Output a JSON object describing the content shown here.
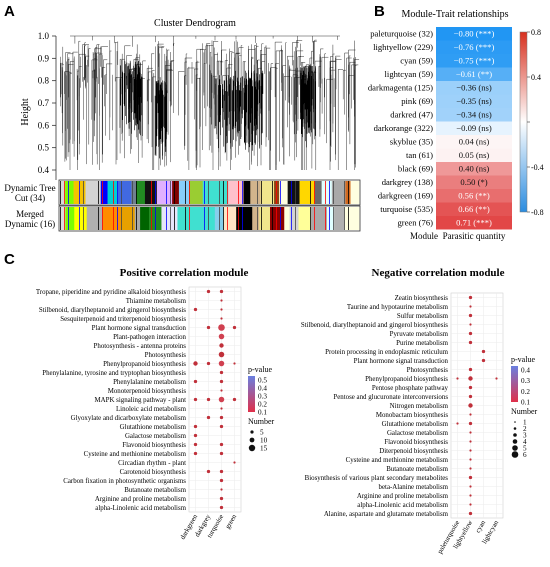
{
  "panel_a": {
    "letter": "A",
    "title": "Cluster Dendrogram",
    "ylabel": "Height",
    "yticks": [
      "1.0",
      "0.9",
      "0.8",
      "0.7",
      "0.6",
      "0.5",
      "0.4"
    ],
    "yvalues": [
      1.0,
      0.9,
      0.8,
      0.7,
      0.6,
      0.5,
      0.4
    ],
    "row1_label_a": "Dynamic Tree",
    "row1_label_b": "Cut (34)",
    "row2_label_a": "Merged",
    "row2_label_b": "Dynamic (16)",
    "row1_colors": [
      "#d8d8d8",
      "#7cfc00",
      "#f4c300",
      "#d3d3d3",
      "#0000ff",
      "#00ced1",
      "#4169e1",
      "#708090",
      "#228b22",
      "#111111",
      "#e0b0ff",
      "#800000",
      "#87cefa",
      "#9acd32",
      "#40e0d0",
      "#40e0d0",
      "#40e0d0",
      "#ffc0cb",
      "#000000",
      "#d2b48c",
      "#f0e68c",
      "#8b4513",
      "#ffffe0",
      "#111111",
      "#ffd700",
      "#696969",
      "#e0ffff",
      "#a9a9a9",
      "#d2691e",
      "#ffffe0"
    ],
    "row2_colors": [
      "#dddddd",
      "#7cfc00",
      "#ffff00",
      "#b0b0b0",
      "#ff8c00",
      "#ff8c00",
      "#e8a000",
      "#a9a9a9",
      "#006400",
      "#228b22",
      "#e6e6fa",
      "#40e0d0",
      "#40e0d0",
      "#40e0d0",
      "#40e0d0",
      "#87ceeb",
      "#ffe4c4",
      "#000000",
      "#d2b48c",
      "#f0e68c",
      "#8b0000",
      "#ffffe0",
      "#d3d3d3",
      "#ffff99",
      "#a9a9a9",
      "#e0ffff",
      "#b0b0b0",
      "#ffffe0"
    ]
  },
  "panel_b": {
    "letter": "B",
    "title": "Module-Trait relationships",
    "xlabel_left": "Module",
    "xlabel_right": "Parasitic quantity",
    "colorbar_ticks": [
      "0.8",
      "0.4",
      "0",
      "-0.4",
      "-0.8"
    ],
    "colorbar_values": [
      0.8,
      0.4,
      0,
      -0.4,
      -0.8
    ],
    "rows": [
      {
        "module": "paleturquoise (32)",
        "value": -0.8,
        "label": "−0.80 (***)"
      },
      {
        "module": "lightyellow (229)",
        "value": -0.76,
        "label": "−0.76 (***)"
      },
      {
        "module": "cyan (59)",
        "value": -0.75,
        "label": "−0.75 (***)"
      },
      {
        "module": "lightcyan (59)",
        "value": -0.61,
        "label": "−0.61 (**)"
      },
      {
        "module": "darkmagenta (125)",
        "value": -0.36,
        "label": "−0.36 (ns)"
      },
      {
        "module": "pink (69)",
        "value": -0.35,
        "label": "−0.35 (ns)"
      },
      {
        "module": "darkred (47)",
        "value": -0.34,
        "label": "−0.34 (ns)"
      },
      {
        "module": "darkorange (322)",
        "value": -0.09,
        "label": "−0.09 (ns)"
      },
      {
        "module": "skyblue (35)",
        "value": 0.04,
        "label": "0.04 (ns)"
      },
      {
        "module": "tan (61)",
        "value": 0.05,
        "label": "0.05 (ns)"
      },
      {
        "module": "black (69)",
        "value": 0.4,
        "label": "0.40 (ns)"
      },
      {
        "module": "darkgrey (138)",
        "value": 0.5,
        "label": "0.50 (*)"
      },
      {
        "module": "darkgreen (169)",
        "value": 0.56,
        "label": "0.56 (**)"
      },
      {
        "module": "turquoise (535)",
        "value": 0.66,
        "label": "0.66 (**)"
      },
      {
        "module": "green (76)",
        "value": 0.71,
        "label": "0.71 (***)"
      }
    ]
  },
  "panel_c": {
    "letter": "C",
    "left": {
      "title": "Positive correlation module",
      "columns": [
        "darkgreen",
        "darkgrey",
        "turquoise",
        "green"
      ],
      "legend_pvalue_title": "p-value",
      "legend_pvalue_ticks": [
        "0.5",
        "0.4",
        "0.3",
        "0.2",
        "0.1"
      ],
      "legend_number_title": "Number",
      "legend_number_items": [
        "5",
        "10",
        "15"
      ],
      "rows": [
        {
          "term": "Tropane, piperidine and pyridine alkaloid biosynthesis",
          "dots": [
            [
              1,
              3,
              "#c0303a"
            ],
            [
              2,
              3,
              "#c0303a"
            ]
          ]
        },
        {
          "term": "Thiamine metabolism",
          "dots": [
            [
              2,
              2,
              "#c0303a"
            ]
          ]
        },
        {
          "term": "Stilbenoid, diarylheptanoid and gingerol biosynthesis",
          "dots": [
            [
              0,
              3,
              "#c0303a"
            ],
            [
              2,
              2,
              "#c0303a"
            ]
          ]
        },
        {
          "term": "Sesquiterpenoid and triterpenoid biosynthesis",
          "dots": [
            [
              2,
              2,
              "#c0303a"
            ]
          ]
        },
        {
          "term": "Plant hormone signal transduction",
          "dots": [
            [
              1,
              3,
              "#c0303a"
            ],
            [
              2,
              6,
              "#d04050"
            ],
            [
              3,
              3,
              "#c0303a"
            ]
          ]
        },
        {
          "term": "Plant-pathogen interaction",
          "dots": [
            [
              2,
              5,
              "#d04050"
            ]
          ]
        },
        {
          "term": "Photosynthesis - antenna proteins",
          "dots": [
            [
              2,
              4,
              "#c0303a"
            ]
          ]
        },
        {
          "term": "Photosynthesis",
          "dots": [
            [
              2,
              5,
              "#c0303a"
            ]
          ]
        },
        {
          "term": "Phenylpropanoid biosynthesis",
          "dots": [
            [
              0,
              4,
              "#c0303a"
            ],
            [
              1,
              3,
              "#c0303a"
            ],
            [
              2,
              5,
              "#d04050"
            ],
            [
              3,
              2,
              "#c0303a"
            ]
          ]
        },
        {
          "term": "Phenylalanine, tyrosine and tryptophan biosynthesis",
          "dots": [
            [
              2,
              3,
              "#c0303a"
            ]
          ]
        },
        {
          "term": "Phenylalanine metabolism",
          "dots": [
            [
              0,
              3,
              "#c0303a"
            ],
            [
              2,
              3,
              "#c0303a"
            ]
          ]
        },
        {
          "term": "Monoterpenoid biosynthesis",
          "dots": [
            [
              2,
              2,
              "#c0303a"
            ]
          ]
        },
        {
          "term": "MAPK signaling pathway - plant",
          "dots": [
            [
              0,
              3,
              "#c0303a"
            ],
            [
              1,
              3,
              "#c0303a"
            ],
            [
              2,
              5,
              "#d04050"
            ],
            [
              3,
              3,
              "#c0303a"
            ]
          ]
        },
        {
          "term": "Linoleic acid metabolism",
          "dots": [
            [
              2,
              2,
              "#c0303a"
            ]
          ]
        },
        {
          "term": "Glyoxylate and dicarboxylate metabolism",
          "dots": [
            [
              1,
              3,
              "#c0303a"
            ],
            [
              2,
              3,
              "#c0303a"
            ]
          ]
        },
        {
          "term": "Glutathione metabolism",
          "dots": [
            [
              0,
              3,
              "#c0303a"
            ],
            [
              2,
              3,
              "#c0303a"
            ]
          ]
        },
        {
          "term": "Galactose metabolism",
          "dots": [
            [
              0,
              3,
              "#c0303a"
            ]
          ]
        },
        {
          "term": "Flavonoid biosynthesis",
          "dots": [
            [
              0,
              3,
              "#c0303a"
            ],
            [
              2,
              3,
              "#c0303a"
            ]
          ]
        },
        {
          "term": "Cysteine and methionine metabolism",
          "dots": [
            [
              0,
              3,
              "#c0303a"
            ],
            [
              2,
              3,
              "#c0303a"
            ]
          ]
        },
        {
          "term": "Circadian rhythm - plant",
          "dots": [
            [
              3,
              2,
              "#c0303a"
            ]
          ]
        },
        {
          "term": "Carotenoid biosynthesis",
          "dots": [
            [
              1,
              3,
              "#c0303a"
            ],
            [
              2,
              3,
              "#c0303a"
            ]
          ]
        },
        {
          "term": "Carbon fixation in photosynthetic organisms",
          "dots": [
            [
              2,
              3,
              "#c0303a"
            ]
          ]
        },
        {
          "term": "Butanoate metabolism",
          "dots": [
            [
              2,
              2,
              "#c0303a"
            ]
          ]
        },
        {
          "term": "Arginine and proline metabolism",
          "dots": [
            [
              2,
              3,
              "#c0303a"
            ]
          ]
        },
        {
          "term": "alpha-Linolenic acid metabolism",
          "dots": [
            [
              2,
              3,
              "#c0303a"
            ]
          ]
        }
      ]
    },
    "right": {
      "title": "Negative correlation module",
      "columns": [
        "paleturquoise",
        "lightyellow",
        "cyan",
        "lightcyan"
      ],
      "legend_pvalue_title": "p-value",
      "legend_pvalue_ticks": [
        "0.4",
        "0.3",
        "0.2",
        "0.1"
      ],
      "legend_number_title": "Number",
      "legend_number_items": [
        "1",
        "2",
        "3",
        "4",
        "5",
        "6"
      ],
      "rows": [
        {
          "term": "Zeatin biosynthesis",
          "dots": [
            [
              1,
              3,
              "#c0303a"
            ]
          ]
        },
        {
          "term": "Taurine and hypotaurine metabolism",
          "dots": [
            [
              1,
              2,
              "#c0303a"
            ]
          ]
        },
        {
          "term": "Sulfur metabolism",
          "dots": [
            [
              1,
              3,
              "#c0303a"
            ]
          ]
        },
        {
          "term": "Stilbenoid, diarylheptanoid and gingerol biosynthesis",
          "dots": [
            [
              1,
              2,
              "#c0303a"
            ]
          ]
        },
        {
          "term": "Pyruvate metabolism",
          "dots": [
            [
              1,
              3,
              "#c0303a"
            ]
          ]
        },
        {
          "term": "Purine metabolism",
          "dots": [
            [
              1,
              3,
              "#c0303a"
            ]
          ]
        },
        {
          "term": "Protein processing in endoplasmic reticulum",
          "dots": [
            [
              2,
              3,
              "#c0303a"
            ]
          ]
        },
        {
          "term": "Plant hormone signal transduction",
          "dots": [
            [
              2,
              3,
              "#c0303a"
            ]
          ]
        },
        {
          "term": "Photosynthesis",
          "dots": [
            [
              1,
              3,
              "#c0303a"
            ]
          ]
        },
        {
          "term": "Phenylpropanoid biosynthesis",
          "dots": [
            [
              0,
              2,
              "#c0303a"
            ],
            [
              1,
              4,
              "#c0303a"
            ],
            [
              3,
              2,
              "#c0303a"
            ]
          ]
        },
        {
          "term": "Pentose phosphate pathway",
          "dots": [
            [
              1,
              3,
              "#c0303a"
            ]
          ]
        },
        {
          "term": "Pentose and glucuronate interconversions",
          "dots": [
            [
              1,
              3,
              "#c0303a"
            ]
          ]
        },
        {
          "term": "Nitrogen metabolism",
          "dots": [
            [
              1,
              4,
              "#c0303a"
            ]
          ]
        },
        {
          "term": "Monobactam biosynthesis",
          "dots": [
            [
              1,
              2,
              "#c0303a"
            ]
          ]
        },
        {
          "term": "Glutathione metabolism",
          "dots": [
            [
              0,
              2,
              "#c0303a"
            ],
            [
              1,
              3,
              "#c0303a"
            ]
          ]
        },
        {
          "term": "Galactose metabolism",
          "dots": [
            [
              1,
              2,
              "#c0303a"
            ]
          ]
        },
        {
          "term": "Flavonoid biosynthesis",
          "dots": [
            [
              1,
              2,
              "#c0303a"
            ]
          ]
        },
        {
          "term": "Diterpenoid biosynthesis",
          "dots": [
            [
              1,
              2,
              "#c0303a"
            ]
          ]
        },
        {
          "term": "Cysteine and methionine metabolism",
          "dots": [
            [
              1,
              2,
              "#c0303a"
            ]
          ]
        },
        {
          "term": "Butanoate metabolism",
          "dots": [
            [
              1,
              2,
              "#c0303a"
            ]
          ]
        },
        {
          "term": "Biosynthesis of various plant secondary metabolites",
          "dots": [
            [
              1,
              3,
              "#c0303a"
            ]
          ]
        },
        {
          "term": "beta-Alanine metabolism",
          "dots": [
            [
              1,
              2,
              "#c0303a"
            ]
          ]
        },
        {
          "term": "Arginine and proline metabolism",
          "dots": [
            [
              1,
              2,
              "#c0303a"
            ]
          ]
        },
        {
          "term": "alpha-Linolenic acid metabolism",
          "dots": [
            [
              1,
              2,
              "#c0303a"
            ]
          ]
        },
        {
          "term": "Alanine, aspartate and glutamate metabolism",
          "dots": [
            [
              1,
              3,
              "#c0303a"
            ]
          ]
        }
      ]
    }
  }
}
